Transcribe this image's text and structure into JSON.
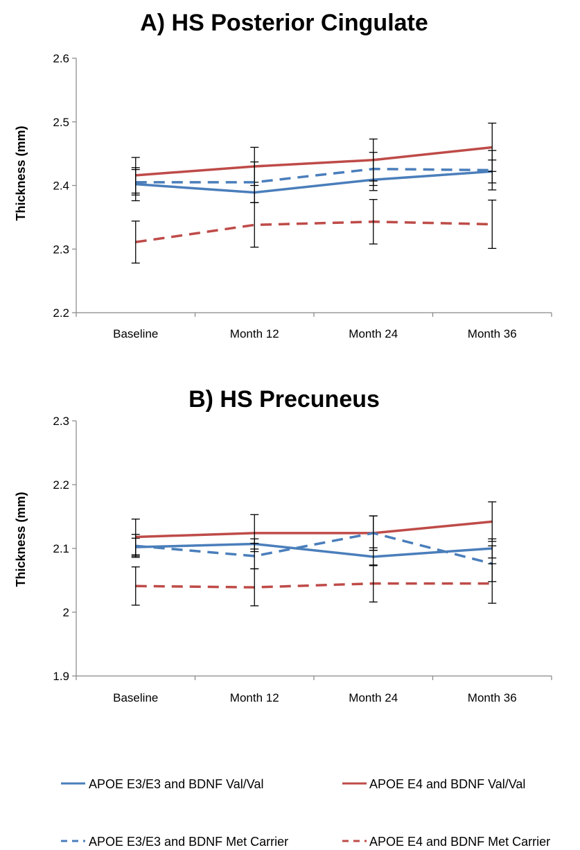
{
  "chart_data": [
    {
      "type": "line",
      "title": "A) HS Posterior Cingulate",
      "ylabel": "Thickness (mm)",
      "xlabel": "",
      "categories": [
        "Baseline",
        "Month 12",
        "Month 24",
        "Month 36"
      ],
      "ylim": [
        2.2,
        2.6
      ],
      "yticks": [
        "2.2",
        "2.3",
        "2.4",
        "2.5",
        "2.6"
      ],
      "grid": false,
      "series": [
        {
          "name": "APOE E3/E3 and BDNF Val/Val",
          "color": "#4a7ebb",
          "style": "solid",
          "values": [
            2.402,
            2.389,
            2.409,
            2.422
          ],
          "error": [
            0.026,
            0.016,
            0.017,
            0.018
          ]
        },
        {
          "name": "APOE E4 and BDNF Val/Val",
          "color": "#be4b48",
          "style": "solid",
          "values": [
            2.416,
            2.43,
            2.44,
            2.46
          ],
          "error": [
            0.028,
            0.03,
            0.033,
            0.038
          ]
        },
        {
          "name": "APOE E3/E3 and BDNF Met Carrier",
          "color": "#4a7ebb",
          "style": "dashed",
          "values": [
            2.405,
            2.405,
            2.426,
            2.424
          ],
          "error": [
            0.02,
            0.032,
            0.026,
            0.031
          ]
        },
        {
          "name": "APOE E4 and BDNF Met Carrier",
          "color": "#be4b48",
          "style": "dashed",
          "values": [
            2.311,
            2.338,
            2.343,
            2.339
          ],
          "error": [
            0.033,
            0.035,
            0.035,
            0.038
          ]
        }
      ]
    },
    {
      "type": "line",
      "title": "B) HS Precuneus",
      "ylabel": "Thickness (mm)",
      "xlabel": "",
      "categories": [
        "Baseline",
        "Month 12",
        "Month 24",
        "Month 36"
      ],
      "ylim": [
        1.9,
        2.3
      ],
      "yticks": [
        "1.9",
        "2",
        "2.1",
        "2.2",
        "2.3"
      ],
      "grid": false,
      "series": [
        {
          "name": "APOE E3/E3 and BDNF Val/Val",
          "color": "#4a7ebb",
          "style": "solid",
          "values": [
            2.102,
            2.107,
            2.087,
            2.1
          ],
          "error": [
            0.014,
            0.008,
            0.014,
            0.015
          ]
        },
        {
          "name": "APOE E4 and BDNF Val/Val",
          "color": "#be4b48",
          "style": "solid",
          "values": [
            2.118,
            2.124,
            2.124,
            2.142
          ],
          "error": [
            0.028,
            0.029,
            0.027,
            0.031
          ]
        },
        {
          "name": "APOE E3/E3 and BDNF Met Carrier",
          "color": "#4a7ebb",
          "style": "dashed",
          "values": [
            2.104,
            2.088,
            2.124,
            2.076
          ],
          "error": [
            0.018,
            0.02,
            0.027,
            0.028
          ]
        },
        {
          "name": "APOE E4 and BDNF Met Carrier",
          "color": "#be4b48",
          "style": "dashed",
          "values": [
            2.041,
            2.039,
            2.045,
            2.045
          ],
          "error": [
            0.03,
            0.029,
            0.029,
            0.031
          ]
        }
      ]
    }
  ],
  "legend": {
    "placement": "bottom",
    "items": [
      {
        "label": "APOE E3/E3 and BDNF Val/Val",
        "color": "#4a7ebb",
        "style": "solid"
      },
      {
        "label": "APOE E4 and BDNF Val/Val",
        "color": "#be4b48",
        "style": "solid"
      },
      {
        "label": "APOE E3/E3 and BDNF Met Carrier",
        "color": "#4a7ebb",
        "style": "dashed"
      },
      {
        "label": "APOE E4 and BDNF Met Carrier",
        "color": "#be4b48",
        "style": "dashed"
      }
    ]
  }
}
